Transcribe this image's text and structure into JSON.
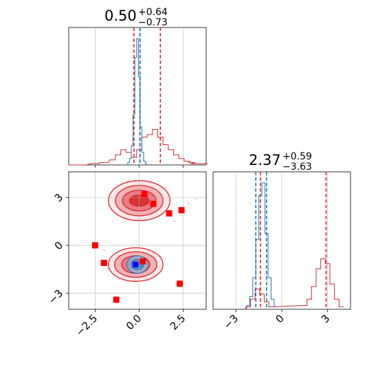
{
  "chart_data": {
    "type": "corner",
    "colors": {
      "blue": "#1f77b4",
      "red": "#d62728",
      "marker": "#ff0000",
      "marker_blue": "#0000ff",
      "fill_red": "#e8717a"
    },
    "param1": {
      "title_main": "0.50",
      "title_sup": "+0.64",
      "title_sub": "−0.73",
      "xlim": [
        -4.0,
        3.8
      ],
      "xticks": [
        -2.5,
        0.0,
        2.5
      ],
      "xtick_labels": [
        "−2.5",
        "0.0",
        "2.5"
      ],
      "blue_lines": [
        0.05
      ],
      "red_lines": [
        -0.3,
        1.2
      ],
      "blue_hist": {
        "x": [
          -0.6,
          -0.5,
          -0.4,
          -0.3,
          -0.2,
          -0.1,
          0.0,
          0.1,
          0.2,
          0.3,
          0.4
        ],
        "y": [
          0.02,
          0.05,
          0.15,
          0.4,
          0.85,
          1.0,
          0.7,
          0.3,
          0.1,
          0.03,
          0.01
        ]
      },
      "red_hist": {
        "x": [
          -3.5,
          -2.5,
          -2.0,
          -1.5,
          -1.2,
          -0.9,
          -0.6,
          -0.3,
          0.0,
          0.3,
          0.6,
          0.9,
          1.2,
          1.5,
          1.8,
          2.1,
          2.4,
          2.7,
          3.0,
          3.4
        ],
        "y": [
          0.0,
          0.01,
          0.02,
          0.04,
          0.08,
          0.12,
          0.1,
          0.06,
          0.12,
          0.22,
          0.24,
          0.28,
          0.22,
          0.16,
          0.12,
          0.08,
          0.05,
          0.03,
          0.02,
          0.01
        ]
      }
    },
    "param2": {
      "title_main": "2.37",
      "title_sup": "+0.59",
      "title_sub": "−3.63",
      "xlim": [
        -4.5,
        4.5
      ],
      "xticks": [
        -3,
        0,
        3
      ],
      "xtick_labels": [
        "−3",
        "0",
        "3"
      ],
      "blue_lines": [
        -1.7,
        -1.0
      ],
      "red_lines": [
        -1.4,
        2.9
      ],
      "blue_hist": {
        "x": [
          -2.2,
          -2.0,
          -1.8,
          -1.6,
          -1.4,
          -1.2,
          -1.0,
          -0.8,
          -0.6,
          -0.4
        ],
        "y": [
          0.03,
          0.1,
          0.25,
          0.55,
          0.9,
          1.0,
          0.6,
          0.25,
          0.08,
          0.02
        ]
      },
      "red_hist": {
        "x": [
          -2.2,
          -1.9,
          -1.6,
          -1.3,
          -1.0,
          -0.7,
          1.5,
          1.8,
          2.1,
          2.4,
          2.7,
          3.0,
          3.3,
          3.6,
          3.9
        ],
        "y": [
          0.02,
          0.08,
          0.16,
          0.12,
          0.06,
          0.02,
          0.03,
          0.08,
          0.18,
          0.32,
          0.4,
          0.36,
          0.2,
          0.08,
          0.02
        ]
      }
    },
    "joint": {
      "ylim": [
        -4.0,
        4.6
      ],
      "yticks": [
        3,
        0,
        -3
      ],
      "ytick_labels": [
        "3",
        "0",
        "−3"
      ],
      "red_blobs": [
        {
          "cx": 0.0,
          "cy": 2.8,
          "rx": [
            1.75,
            1.35,
            0.95,
            0.55
          ],
          "ry": [
            1.25,
            0.95,
            0.65,
            0.35
          ]
        },
        {
          "cx": -0.2,
          "cy": -1.2,
          "rx": [
            1.55,
            1.2,
            0.8,
            0.45
          ],
          "ry": [
            1.05,
            0.8,
            0.55,
            0.3
          ]
        }
      ],
      "blue_blob": {
        "cx": -0.1,
        "cy": -1.2,
        "rx": [
          0.6,
          0.35
        ],
        "ry": [
          0.55,
          0.32
        ]
      },
      "markers": [
        {
          "x": 0.3,
          "y": 3.2
        },
        {
          "x": 0.8,
          "y": 2.6
        },
        {
          "x": 1.7,
          "y": 2.0
        },
        {
          "x": 2.4,
          "y": 2.2
        },
        {
          "x": -2.5,
          "y": 0.0
        },
        {
          "x": -2.0,
          "y": -1.1
        },
        {
          "x": 0.2,
          "y": -1.0
        },
        {
          "x": 2.3,
          "y": -2.4
        },
        {
          "x": -1.3,
          "y": -3.4
        }
      ],
      "blue_marker": {
        "x": -0.2,
        "y": -1.2
      }
    }
  }
}
